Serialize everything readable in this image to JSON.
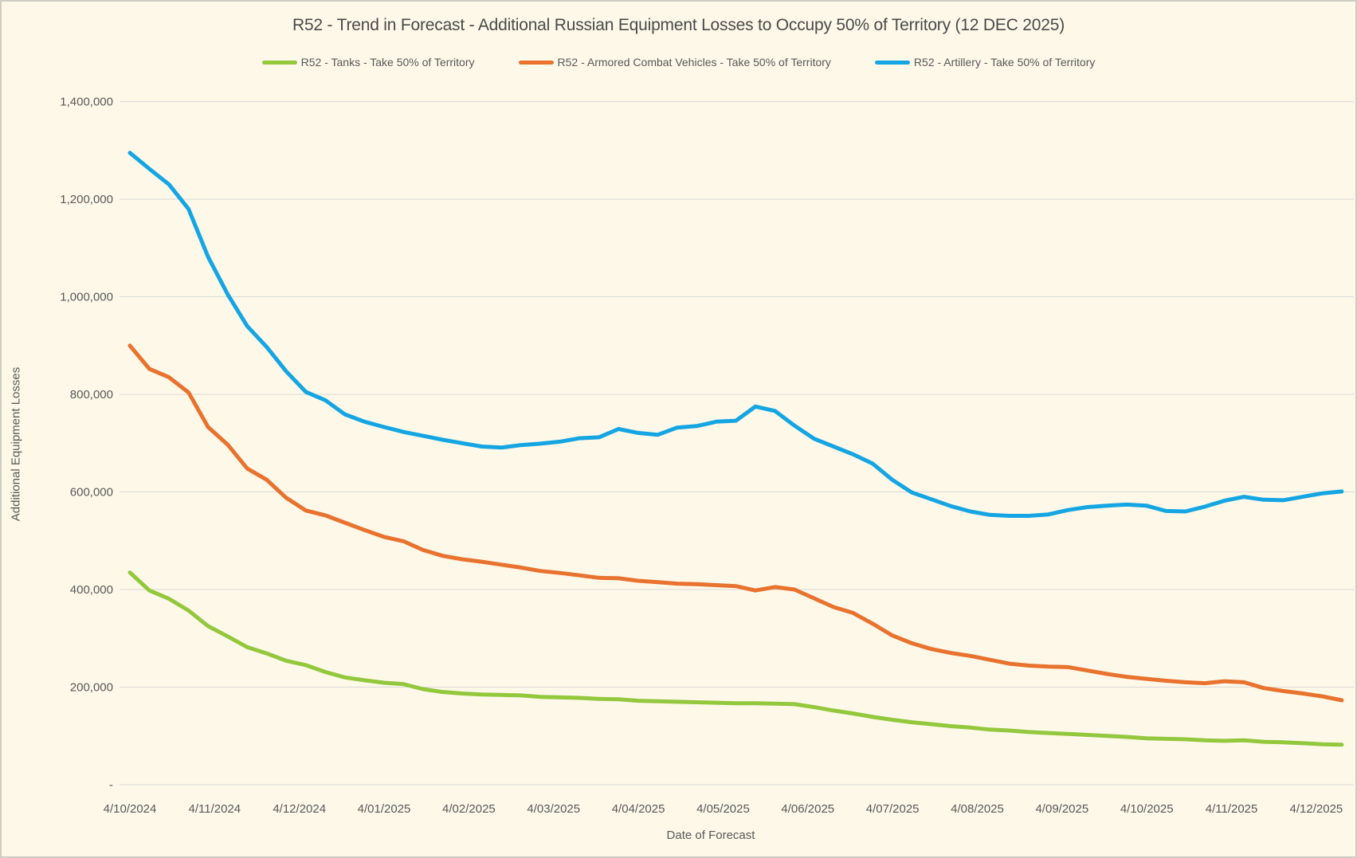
{
  "chart": {
    "title": "R52 - Trend in Forecast - Additional Russian Equipment Losses to Occupy 50% of Territory (12 DEC 2025)",
    "x_axis_title": "Date of Forecast",
    "y_axis_title": "Additional Equipment Losses"
  },
  "chart_data": {
    "type": "line",
    "title": "R52 - Trend in Forecast - Additional Russian Equipment Losses to Occupy 50% of Territory (12 DEC 2025)",
    "xlabel": "Date of Forecast",
    "ylabel": "Additional Equipment Losses",
    "ylim": [
      0,
      1400000
    ],
    "grid": "horizontal",
    "legend_position": "top",
    "background_color": "#FDF8E8",
    "gridline_color": "#D9D9D9",
    "text_color": "#595959",
    "x_frequency": "weekly points from 4/10/2024 to 12/12/2025, labeled monthly",
    "x_tick_labels": [
      "4/10/2024",
      "4/11/2024",
      "4/12/2024",
      "4/01/2025",
      "4/02/2025",
      "4/03/2025",
      "4/04/2025",
      "4/05/2025",
      "4/06/2025",
      "4/07/2025",
      "4/08/2025",
      "4/09/2025",
      "4/10/2025",
      "4/11/2025",
      "4/12/2025"
    ],
    "y_tick_labels": [
      "-",
      "200,000",
      "400,000",
      "600,000",
      "800,000",
      "1,000,000",
      "1,200,000",
      "1,400,000"
    ],
    "series": [
      {
        "name": "R52 - Tanks - Take 50% of Territory",
        "color": "#93C83D",
        "values": [
          435000,
          398000,
          381000,
          357000,
          325000,
          304000,
          282000,
          269000,
          254000,
          245000,
          231000,
          220000,
          214000,
          209000,
          206000,
          196000,
          190000,
          187000,
          185000,
          184000,
          183000,
          180000,
          179000,
          178000,
          176000,
          175000,
          172000,
          171000,
          170000,
          169000,
          168000,
          167000,
          167000,
          166000,
          165000,
          159000,
          152000,
          146000,
          139000,
          133000,
          128000,
          124000,
          120000,
          117000,
          113000,
          111000,
          108000,
          106000,
          104000,
          102000,
          100000,
          98000,
          95000,
          94000,
          93000,
          91000,
          90000,
          91000,
          88000,
          87000,
          85000,
          83000,
          82000
        ]
      },
      {
        "name": "R52 - Armored Combat Vehicles - Take 50% of Territory",
        "color": "#E8722E",
        "values": [
          900000,
          852000,
          835000,
          804000,
          733000,
          697000,
          648000,
          625000,
          588000,
          562000,
          552000,
          537000,
          522000,
          508000,
          499000,
          481000,
          469000,
          462000,
          457000,
          451000,
          445000,
          438000,
          434000,
          429000,
          424000,
          423000,
          418000,
          415000,
          412000,
          411000,
          409000,
          407000,
          398000,
          405000,
          400000,
          382000,
          364000,
          352000,
          330000,
          306000,
          290000,
          278000,
          270000,
          264000,
          256000,
          248000,
          244000,
          242000,
          241000,
          234000,
          227000,
          221000,
          217000,
          213000,
          210000,
          208000,
          212000,
          210000,
          198000,
          192000,
          187000,
          181000,
          173000
        ]
      },
      {
        "name": "R52 - Artillery - Take 50% of Territory",
        "color": "#14A5E3",
        "values": [
          1295000,
          1262000,
          1230000,
          1180000,
          1082000,
          1005000,
          940000,
          897000,
          847000,
          805000,
          788000,
          759000,
          744000,
          733000,
          723000,
          715000,
          707000,
          700000,
          693000,
          691000,
          696000,
          699000,
          703000,
          710000,
          712000,
          729000,
          721000,
          717000,
          732000,
          735000,
          744000,
          746000,
          775000,
          766000,
          736000,
          709000,
          693000,
          677000,
          658000,
          625000,
          599000,
          585000,
          571000,
          560000,
          553000,
          551000,
          551000,
          554000,
          563000,
          569000,
          572000,
          574000,
          572000,
          561000,
          560000,
          570000,
          582000,
          590000,
          584000,
          583000,
          590000,
          597000,
          601000
        ]
      }
    ]
  }
}
